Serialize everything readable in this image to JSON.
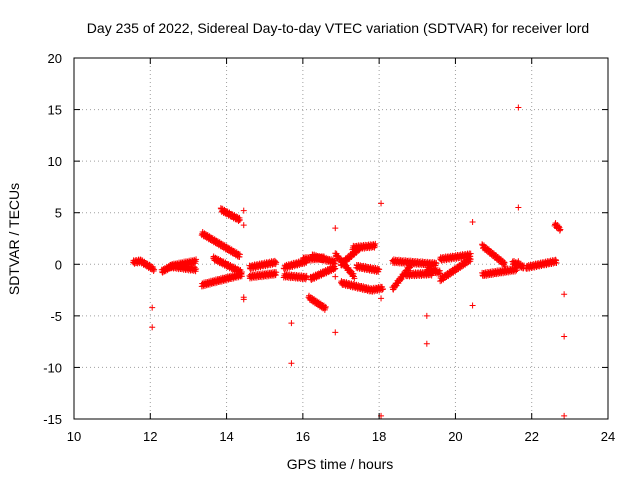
{
  "chart_data": {
    "type": "scatter",
    "title": "Day 235 of 2022, Sidereal Day-to-day VTEC variation (SDTVAR) for receiver lord",
    "xlabel": "GPS time / hours",
    "ylabel": "SDTVAR / TECUs",
    "xlim": [
      10,
      24
    ],
    "ylim": [
      -15,
      20
    ],
    "xticks": [
      "10",
      "12",
      "14",
      "16",
      "18",
      "20",
      "22",
      "24"
    ],
    "yticks": [
      "-15",
      "-10",
      "-5",
      "0",
      "5",
      "10",
      "15",
      "20"
    ],
    "grid": true,
    "marker": "+",
    "color": "#ff0000",
    "segments": [
      [
        11.55,
        11.75,
        0.2,
        0.3
      ],
      [
        11.75,
        12.1,
        0.3,
        -0.5
      ],
      [
        12.3,
        12.55,
        -0.7,
        -0.2
      ],
      [
        12.55,
        13.2,
        -0.2,
        -0.5
      ],
      [
        12.5,
        13.2,
        -0.2,
        0.3
      ],
      [
        13.35,
        14.35,
        3.0,
        0.8
      ],
      [
        13.35,
        14.4,
        -2.0,
        -1.0
      ],
      [
        13.65,
        14.4,
        0.6,
        -0.8
      ],
      [
        13.85,
        14.35,
        5.3,
        4.3
      ],
      [
        14.6,
        15.3,
        -0.3,
        0.2
      ],
      [
        14.6,
        15.3,
        -1.2,
        -0.9
      ],
      [
        15.5,
        16.1,
        -0.3,
        0.3
      ],
      [
        15.5,
        16.1,
        -1.1,
        -1.3
      ],
      [
        16.0,
        16.55,
        0.5,
        0.6
      ],
      [
        16.15,
        16.6,
        -3.2,
        -4.3
      ],
      [
        16.25,
        16.85,
        0.8,
        0.2
      ],
      [
        16.2,
        16.85,
        -1.4,
        -0.3
      ],
      [
        16.85,
        17.35,
        1.0,
        -1.2
      ],
      [
        17.0,
        17.5,
        0.0,
        1.6
      ],
      [
        17.3,
        17.9,
        1.6,
        1.8
      ],
      [
        17.4,
        18.0,
        -0.2,
        -0.6
      ],
      [
        17.0,
        17.8,
        -1.8,
        -2.5
      ],
      [
        17.8,
        18.1,
        -2.5,
        -2.3
      ],
      [
        18.35,
        18.85,
        -2.4,
        0.0
      ],
      [
        18.35,
        19.5,
        0.3,
        0.0
      ],
      [
        18.7,
        19.4,
        -1.0,
        -0.9
      ],
      [
        19.25,
        19.6,
        -0.5,
        -0.8
      ],
      [
        19.6,
        20.4,
        -1.5,
        0.5
      ],
      [
        19.6,
        20.4,
        0.5,
        0.9
      ],
      [
        20.7,
        21.3,
        1.8,
        0.0
      ],
      [
        20.7,
        21.6,
        -1.0,
        -0.5
      ],
      [
        21.5,
        21.8,
        0.2,
        -0.3
      ],
      [
        21.85,
        22.65,
        -0.3,
        0.3
      ],
      [
        22.6,
        22.75,
        3.9,
        3.4
      ]
    ],
    "points": [
      [
        12.05,
        -4.2
      ],
      [
        12.05,
        -6.1
      ],
      [
        14.45,
        5.2
      ],
      [
        14.45,
        3.8
      ],
      [
        14.45,
        -3.2
      ],
      [
        14.45,
        -3.4
      ],
      [
        15.7,
        -5.7
      ],
      [
        15.7,
        -9.6
      ],
      [
        16.85,
        3.5
      ],
      [
        16.85,
        -6.6
      ],
      [
        16.85,
        -1.2
      ],
      [
        18.05,
        5.9
      ],
      [
        18.05,
        -14.7
      ],
      [
        18.05,
        -3.3
      ],
      [
        19.25,
        -5.0
      ],
      [
        19.25,
        -7.7
      ],
      [
        20.45,
        4.1
      ],
      [
        20.45,
        -4.0
      ],
      [
        21.65,
        15.2
      ],
      [
        21.65,
        5.5
      ],
      [
        21.65,
        0.3
      ],
      [
        22.85,
        -2.9
      ],
      [
        22.85,
        -7.0
      ],
      [
        22.85,
        -14.7
      ]
    ]
  }
}
